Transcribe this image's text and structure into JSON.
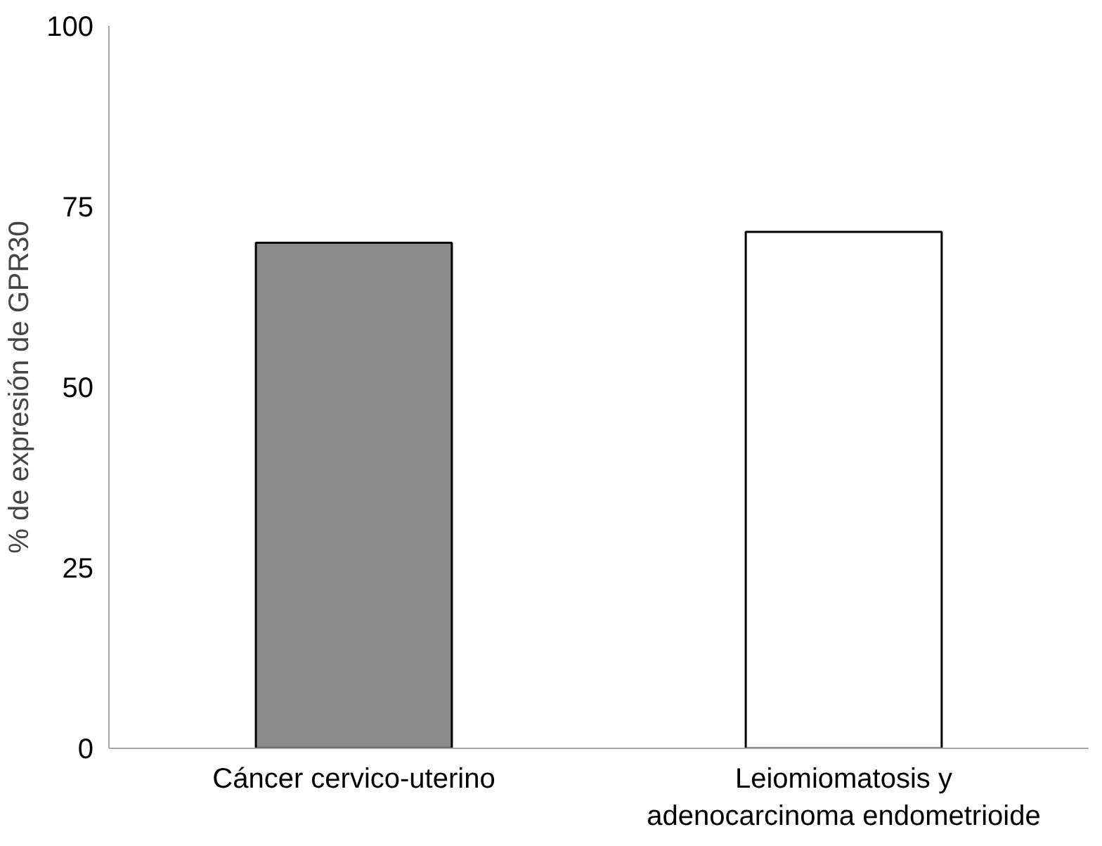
{
  "chart_data": {
    "type": "bar",
    "ylabel": "% de expresión de GPR30",
    "categories": [
      "Cáncer cervico-uterino",
      "Leiomiomatosis y adenocarcinoma endometrioide"
    ],
    "values": [
      70,
      71.5
    ],
    "colors": [
      "#8c8c8c",
      "#ffffff"
    ],
    "ylim": [
      0,
      100
    ],
    "yticks": [
      0,
      25,
      50,
      75,
      100
    ],
    "grid": false
  }
}
